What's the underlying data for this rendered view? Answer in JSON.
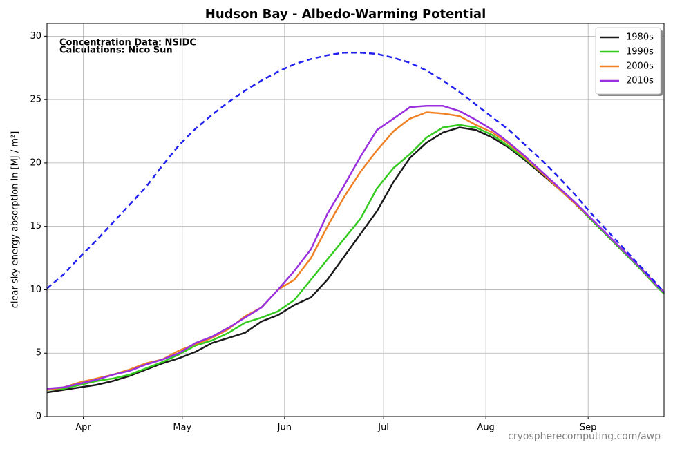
{
  "chart_data": {
    "type": "line",
    "title": "Hudson Bay - Albedo-Warming Potential",
    "annotations": [
      "Concentration Data: NSIDC",
      "Calculations: Nico Sun"
    ],
    "footer": "cryospherecomputing.com/awp",
    "y_label": "clear sky energy absorption in  [MJ / m²]",
    "x": [
      80,
      85,
      90,
      95,
      100,
      105,
      110,
      115,
      120,
      125,
      130,
      135,
      140,
      145,
      150,
      155,
      160,
      165,
      170,
      175,
      180,
      185,
      190,
      195,
      200,
      205,
      210,
      215,
      220,
      225,
      230,
      235,
      240,
      245,
      250,
      255,
      260,
      265,
      267
    ],
    "xlim": [
      80,
      267
    ],
    "xticks": [
      {
        "value": 91,
        "label": "Apr"
      },
      {
        "value": 121,
        "label": "May"
      },
      {
        "value": 152,
        "label": "Jun"
      },
      {
        "value": 182,
        "label": "Jul"
      },
      {
        "value": 213,
        "label": "Aug"
      },
      {
        "value": 244,
        "label": "Sep"
      }
    ],
    "ylim": [
      0,
      31
    ],
    "yticks": [
      0,
      5,
      10,
      15,
      20,
      25,
      30
    ],
    "grid": true,
    "legend": "upper right",
    "series": [
      {
        "name": "1980s",
        "color": "#1a1a1a",
        "values": [
          1.9,
          2.1,
          2.3,
          2.5,
          2.8,
          3.2,
          3.7,
          4.2,
          4.6,
          5.1,
          5.8,
          6.2,
          6.6,
          7.5,
          8.0,
          8.8,
          9.4,
          10.8,
          12.6,
          14.4,
          16.2,
          18.5,
          20.4,
          21.6,
          22.4,
          22.8,
          22.6,
          22.0,
          21.2,
          20.2,
          19.1,
          18.0,
          16.8,
          15.5,
          14.2,
          12.9,
          11.6,
          10.2,
          9.7
        ]
      },
      {
        "name": "1990s",
        "color": "#33cc1f",
        "values": [
          2.1,
          2.2,
          2.5,
          2.8,
          3.0,
          3.3,
          3.8,
          4.3,
          4.9,
          5.6,
          6.0,
          6.6,
          7.4,
          7.8,
          8.3,
          9.2,
          10.8,
          12.4,
          14.0,
          15.6,
          18.0,
          19.6,
          20.7,
          22.0,
          22.8,
          23.0,
          22.8,
          22.2,
          21.3,
          20.3,
          19.2,
          18.0,
          16.8,
          15.5,
          14.2,
          12.9,
          11.6,
          10.2,
          9.7
        ]
      },
      {
        "name": "2000s",
        "color": "#f08024",
        "values": [
          2.1,
          2.3,
          2.7,
          3.0,
          3.3,
          3.7,
          4.2,
          4.5,
          5.2,
          5.7,
          6.2,
          6.9,
          7.9,
          8.6,
          10.0,
          10.8,
          12.5,
          15.0,
          17.3,
          19.3,
          21.0,
          22.5,
          23.5,
          24.0,
          23.9,
          23.7,
          23.0,
          22.4,
          21.5,
          20.4,
          19.2,
          18.0,
          16.8,
          15.6,
          14.3,
          13.0,
          11.7,
          10.3,
          9.8
        ]
      },
      {
        "name": "2010s",
        "color": "#9a2fe0",
        "values": [
          2.2,
          2.3,
          2.6,
          2.9,
          3.3,
          3.6,
          4.1,
          4.5,
          5.0,
          5.8,
          6.3,
          7.0,
          7.8,
          8.6,
          10.0,
          11.5,
          13.2,
          16.0,
          18.2,
          20.5,
          22.6,
          23.5,
          24.4,
          24.5,
          24.5,
          24.1,
          23.4,
          22.6,
          21.6,
          20.5,
          19.3,
          18.1,
          16.9,
          15.6,
          14.3,
          13.0,
          11.7,
          10.3,
          9.8
        ]
      },
      {
        "color": "#2020f0",
        "dashed": true,
        "values": [
          10.1,
          11.2,
          12.6,
          13.9,
          15.3,
          16.7,
          18.1,
          19.8,
          21.4,
          22.7,
          23.8,
          24.8,
          25.7,
          26.5,
          27.2,
          27.8,
          28.2,
          28.5,
          28.7,
          28.7,
          28.6,
          28.3,
          27.9,
          27.3,
          26.5,
          25.6,
          24.6,
          23.6,
          22.6,
          21.4,
          20.2,
          18.9,
          17.5,
          16.0,
          14.6,
          13.2,
          11.8,
          10.4,
          9.8
        ]
      }
    ]
  }
}
